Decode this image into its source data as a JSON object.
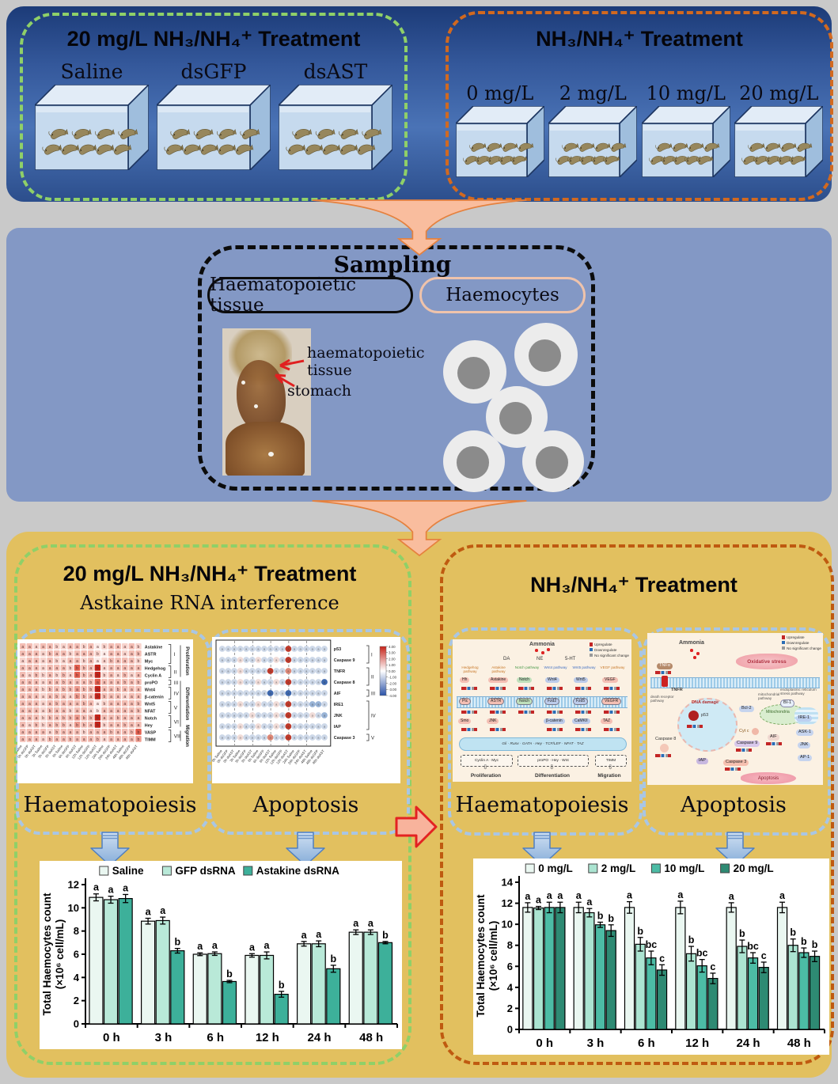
{
  "icons": {
    "open_down_arrow": "⇩"
  },
  "colors": {
    "top_panel": "#2f5496",
    "mid_panel": "#8398c5",
    "bottom_panel": "#e2c05f",
    "green_dash": "#8fd068",
    "orange_dash": "#d2691f",
    "brown_dash": "#bf5a10",
    "blue_dash": "#a9c6e4",
    "funnel_fill": "#f9bd9e",
    "funnel_stroke": "#e5813e",
    "red_arrow_fill": "#f8b39c",
    "red_arrow_stroke": "#e32222",
    "upregulate": "#c22626",
    "downregulate": "#2a6db5",
    "no_change": "#9a9a9a"
  },
  "mini_legend": {
    "up": "Upregulate",
    "down": "Downregulate",
    "ns": "No significant change"
  },
  "top": {
    "left_group": {
      "title": "20 mg/L NH₃/NH₄⁺ Treatment",
      "tanks": [
        "Saline",
        "dsGFP",
        "dsAST"
      ]
    },
    "right_group": {
      "title": "NH₃/NH₄⁺ Treatment",
      "tanks": [
        "0 mg/L",
        "2 mg/L",
        "10 mg/L",
        "20 mg/L"
      ]
    }
  },
  "sampling": {
    "title": "Sampling",
    "tissue_pill": "Haematopoietic tissue",
    "haemocytes_pill": "Haemocytes",
    "annotation_line1": "haematopoietic",
    "annotation_line2": "tissue",
    "annotation_stomach": "stomach"
  },
  "bottom_left": {
    "title": "20 mg/L NH₃/NH₄⁺ Treatment",
    "subtitle": "Astkaine RNA interference",
    "haematopoiesis_label": "Haematopoiesis",
    "apoptosis_label": "Apoptosis",
    "col_labels": [
      "0h Saline",
      "0h dsGFP",
      "0h dsAST",
      "3h Saline",
      "3h dsGFP",
      "3h dsAST",
      "6h Saline",
      "6h dsGFP",
      "6h dsAST",
      "12h Saline",
      "12h dsGFP",
      "12h dsAST",
      "24h Saline",
      "24h dsGFP",
      "24h dsAST",
      "48h Saline",
      "48h dsGFP",
      "48h dsAST"
    ],
    "heatmap": {
      "rows": [
        {
          "label": "Astakine",
          "shade": "332332233231233232",
          "sig": "aaaaabaaabaabaaaab"
        },
        {
          "label": "ASTR",
          "shade": "333233323332133233",
          "sig": "aaaabaabaaabaaaaab"
        },
        {
          "label": "Myc",
          "shade": "233232233231233332",
          "sig": "aaaaabaaabaaabaaab"
        },
        {
          "label": "Hedgehog",
          "shade": "333233325336233333",
          "sig": "aaaaaaabbbabaaaaaa"
        },
        {
          "label": "Cyclin A",
          "shade": "323232325336232323",
          "sig": "aabbabbabbabbaabaa"
        },
        {
          "label": "proPO",
          "shade": "333233333335333333",
          "sig": "aaaaaabaaabaaaabab"
        },
        {
          "label": "Wnt4",
          "shade": "333233334336333333",
          "sig": "aaabbabbabbbaabaaa"
        },
        {
          "label": "β-catenin",
          "shade": "333233324336333233",
          "sig": "aaaaabaabbabbaaaaa"
        },
        {
          "label": "Wnt5",
          "shade": "333233333331233333",
          "sig": "aaaaabaaabaabaaaab"
        },
        {
          "label": "NFAT",
          "shade": "333233323321333333",
          "sig": "aaaabaabaaabaaaaab"
        },
        {
          "label": "Notch",
          "shade": "333233334336333333",
          "sig": "aaabbabbabbbaabaaa"
        },
        {
          "label": "Hey",
          "shade": "323233324336233333",
          "sig": "aabbabbabbabbaabaa"
        },
        {
          "label": "VASP",
          "shade": "333323333233333335",
          "sig": "aaaaabaaabaaabaabb"
        },
        {
          "label": "TIMM",
          "shade": "333233333333233334",
          "sig": "aaaabaabaaabaaaaab"
        }
      ],
      "groups": [
        {
          "num": "I",
          "from": 0,
          "to": 2
        },
        {
          "num": "II",
          "from": 3,
          "to": 4
        },
        {
          "num": "III",
          "from": 5,
          "to": 5
        },
        {
          "num": "IV",
          "from": 6,
          "to": 7
        },
        {
          "num": "V",
          "from": 8,
          "to": 9
        },
        {
          "num": "VI",
          "from": 10,
          "to": 11
        },
        {
          "num": "VII",
          "from": 12,
          "to": 13
        }
      ],
      "categories": [
        {
          "name": "Proliferation",
          "from": 0,
          "to": 4
        },
        {
          "name": "Differentiation",
          "from": 5,
          "to": 11
        },
        {
          "name": "Migration",
          "from": 12,
          "to": 13
        }
      ]
    },
    "dotplot": {
      "rows": [
        {
          "label": "p53",
          "cells": "00000000000R000000"
        },
        {
          "label": "Caspase 9",
          "cells": "000p00p00p0R000000"
        },
        {
          "label": "TNFR",
          "cells": "000p0000R00r000000"
        },
        {
          "label": "Caspase 8",
          "cells": "000p00p00p0R00000B"
        },
        {
          "label": "AIF",
          "cells": "00000000B00B000000"
        },
        {
          "label": "IRE1",
          "cells": "000p00p00p0R000bb0"
        },
        {
          "label": "JNK",
          "cells": "00000p000p0R000p0b"
        },
        {
          "label": "IAP",
          "cells": "000p00p00p0R000000"
        },
        {
          "label": "Caspase 3",
          "cells": "000p0000r00R000000"
        }
      ],
      "groups": [
        {
          "num": "I",
          "from": 0,
          "to": 1
        },
        {
          "num": "II",
          "from": 2,
          "to": 3
        },
        {
          "num": "III",
          "from": 4,
          "to": 4
        },
        {
          "num": "IV",
          "from": 5,
          "to": 7
        },
        {
          "num": "V",
          "from": 8,
          "to": 8
        }
      ],
      "colorbar": [
        "4.00",
        "3.00",
        "2.00",
        "1.00",
        "0.00",
        "-1.00",
        "-2.00",
        "-3.00",
        "-4.00"
      ]
    }
  },
  "bottom_right": {
    "title": "NH₃/NH₄⁺ Treatment",
    "haematopoiesis_label": "Haematopoiesis",
    "apoptosis_label": "Apoptosis",
    "pathway_haematopoiesis": {
      "ammonia": "Ammonia",
      "neuro": [
        "DA",
        "NE",
        "5-HT"
      ],
      "columns": [
        {
          "pathway": "Hedgehog pathway",
          "ligand": "Hh",
          "receptor": "Ptc",
          "effector": "Smo",
          "tone": "o"
        },
        {
          "pathway": "Astakine pathway",
          "ligand": "Astakine",
          "receptor": "ASTR",
          "effector": "JNK",
          "tone": "o"
        },
        {
          "pathway": "Notch pathway",
          "ligand": "Notch",
          "receptor": "Notch",
          "effector": "",
          "tone": "g"
        },
        {
          "pathway": "Wnt4 pathway",
          "ligand": "Wnt4",
          "receptor": "Fzd2",
          "effector": "β-catenin",
          "tone": "b"
        },
        {
          "pathway": "Wnt5 pathway",
          "ligand": "Wnt5",
          "receptor": "Fzd5",
          "effector": "CaMKII",
          "tone": "b"
        },
        {
          "pathway": "VEGF pathway",
          "ligand": "VEGF",
          "receptor": "VEGFR",
          "effector": "TAZ",
          "tone": "o"
        }
      ],
      "tf_band": "Gli · Runx · GATA · Hey · TCF/LEF · NFAT · TAZ",
      "outputs": [
        "Cyclin A · Myc",
        "proPO · Hey · Wnt",
        "TIMM"
      ],
      "processes": [
        "Proliferation",
        "Differentiation",
        "Migration"
      ]
    },
    "pathway_apoptosis": {
      "ammonia": "Ammonia",
      "stress": "Oxidative stress",
      "tnfa": "TNFα",
      "tnfr": "TNFR",
      "death_pathway": "death receptor pathway",
      "mito_pathway": "mitochondrial pathway",
      "er_pathway": "endoplasmic reticulum stress pathway",
      "dna_damage": "DNA damage",
      "p53": "p53",
      "bcl2": "Bcl-2",
      "bi1": "BI-1",
      "mitochondria": "Mitochondria",
      "cytc": "Cyt c",
      "caspase9": "Caspase 9",
      "caspase8": "Caspase 8",
      "caspase3": "Caspase 3",
      "iap": "IAP",
      "aif": "AIF",
      "ire1": "IRE-1",
      "ask1": "ASK-1",
      "jnk": "JNK",
      "ap1": "AP-1",
      "apoptosis": "Apoptosis"
    }
  },
  "chart_data": [
    {
      "type": "bar",
      "categories": [
        "0 h",
        "3 h",
        "6 h",
        "12 h",
        "24 h",
        "48 h"
      ],
      "series": [
        {
          "name": "Saline",
          "color": "#eaf7f1",
          "values": [
            10.9,
            8.85,
            6.0,
            5.9,
            6.9,
            7.9
          ],
          "errors": [
            0.3,
            0.25,
            0.12,
            0.15,
            0.2,
            0.2
          ],
          "letters": [
            "a",
            "a",
            "a",
            "a",
            "a",
            "a"
          ]
        },
        {
          "name": "GFP dsRNA",
          "color": "#b9e9d8",
          "values": [
            10.7,
            8.9,
            6.05,
            5.9,
            6.9,
            7.9
          ],
          "errors": [
            0.3,
            0.3,
            0.15,
            0.3,
            0.25,
            0.2
          ],
          "letters": [
            "a",
            "a",
            "a",
            "a",
            "a",
            "a"
          ]
        },
        {
          "name": "Astakine dsRNA",
          "color": "#3db09a",
          "values": [
            10.8,
            6.3,
            3.65,
            2.55,
            4.75,
            7.0
          ],
          "errors": [
            0.35,
            0.2,
            0.1,
            0.25,
            0.3,
            0.1
          ],
          "letters": [
            "a",
            "b",
            "b",
            "b",
            "b",
            "b"
          ]
        }
      ],
      "ylabel": "Total Haemocytes count",
      "ylabel2": "(×10⁶ cell/mL)",
      "ylim": [
        0,
        12
      ],
      "ystep": 2,
      "xlabel": ""
    },
    {
      "type": "bar",
      "categories": [
        "0 h",
        "3 h",
        "6 h",
        "12 h",
        "24 h",
        "48 h"
      ],
      "series": [
        {
          "name": "0 mg/L",
          "color": "#eaf7f1",
          "values": [
            11.6,
            11.6,
            11.6,
            11.6,
            11.6,
            11.6
          ],
          "errors": [
            0.45,
            0.5,
            0.55,
            0.6,
            0.45,
            0.5
          ],
          "letters": [
            "a",
            "a",
            "a",
            "a",
            "a",
            "a"
          ]
        },
        {
          "name": "2 mg/L",
          "color": "#abe4d1",
          "values": [
            11.55,
            11.1,
            8.1,
            7.2,
            7.9,
            8.0
          ],
          "errors": [
            0.15,
            0.4,
            0.65,
            0.7,
            0.6,
            0.6
          ],
          "letters": [
            "a",
            "a",
            "b",
            "b",
            "b",
            "b"
          ]
        },
        {
          "name": "10 mg/L",
          "color": "#4cbca5",
          "values": [
            11.6,
            9.95,
            6.8,
            6.05,
            6.8,
            7.3
          ],
          "errors": [
            0.5,
            0.25,
            0.65,
            0.6,
            0.5,
            0.45
          ],
          "letters": [
            "a",
            "b",
            "bc",
            "bc",
            "bc",
            "b"
          ]
        },
        {
          "name": "20 mg/L",
          "color": "#2e8a73",
          "values": [
            11.6,
            9.4,
            5.65,
            4.85,
            5.9,
            6.95
          ],
          "errors": [
            0.5,
            0.55,
            0.5,
            0.5,
            0.5,
            0.5
          ],
          "letters": [
            "a",
            "b",
            "c",
            "c",
            "c",
            "b"
          ]
        }
      ],
      "ylabel": "Total Haemocytes count",
      "ylabel2": "(×10⁶ cell/mL)",
      "ylim": [
        0,
        14
      ],
      "ystep": 2,
      "xlabel": ""
    }
  ]
}
